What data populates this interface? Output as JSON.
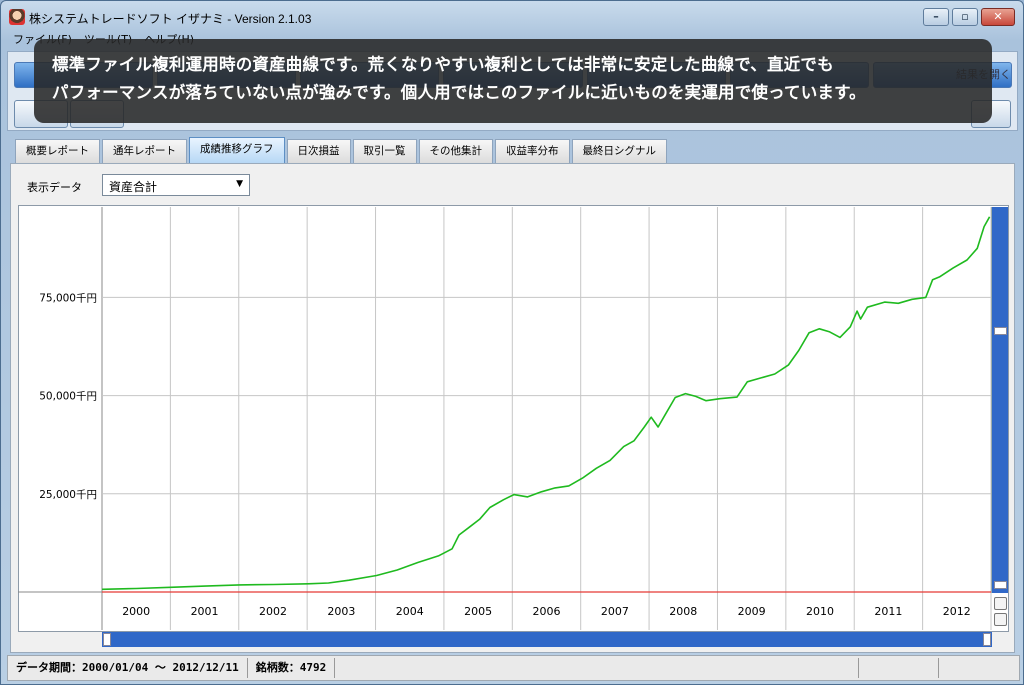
{
  "window": {
    "title": "株システムトレードソフト イザナミ - Version 2.1.03"
  },
  "menu": [
    "ファイル(F)",
    "ツール(T)",
    "ヘルプ(H)"
  ],
  "toolbar": {
    "right_label": "結果を開く"
  },
  "caption": {
    "line1": "標準ファイル複利運用時の資産曲線です。荒くなりやすい複利としては非常に安定した曲線で、直近でも",
    "line2": "パフォーマンスが落ちていない点が強みです。個人用ではこのファイルに近いものを実運用で使っています。"
  },
  "tabs": [
    {
      "label": "概要レポート",
      "active": false
    },
    {
      "label": "通年レポート",
      "active": false
    },
    {
      "label": "成績推移グラフ",
      "active": true
    },
    {
      "label": "日次損益",
      "active": false
    },
    {
      "label": "取引一覧",
      "active": false
    },
    {
      "label": "その他集計",
      "active": false
    },
    {
      "label": "収益率分布",
      "active": false
    },
    {
      "label": "最終日シグナル",
      "active": false
    }
  ],
  "display": {
    "label": "表示データ",
    "selected": "資産合計"
  },
  "status": {
    "period": "データ期間：2000/01/04 〜 2012/12/11",
    "count": "銘柄数：4792"
  },
  "chart_data": {
    "type": "line",
    "x_unit": "year",
    "categories": [
      "2000",
      "2001",
      "2002",
      "2003",
      "2004",
      "2005",
      "2006",
      "2007",
      "2008",
      "2009",
      "2010",
      "2011",
      "2012"
    ],
    "y_tick_labels": [
      "25,000千円",
      "50,000千円",
      "75,000千円"
    ],
    "y_ticks": [
      25000,
      50000,
      75000
    ],
    "ylim": [
      0,
      98000
    ],
    "xlim": [
      2000.0,
      2012.95
    ],
    "grid": true,
    "series": [
      {
        "color": "#1fba1f",
        "points": [
          [
            2000.0,
            700
          ],
          [
            2000.5,
            900
          ],
          [
            2001.0,
            1200
          ],
          [
            2001.5,
            1500
          ],
          [
            2002.0,
            1800
          ],
          [
            2002.5,
            1900
          ],
          [
            2003.0,
            2100
          ],
          [
            2003.3,
            2300
          ],
          [
            2003.6,
            3000
          ],
          [
            2004.0,
            4200
          ],
          [
            2004.3,
            5600
          ],
          [
            2004.6,
            7500
          ],
          [
            2004.9,
            9200
          ],
          [
            2005.1,
            11000
          ],
          [
            2005.2,
            14500
          ],
          [
            2005.35,
            16500
          ],
          [
            2005.5,
            18500
          ],
          [
            2005.65,
            21500
          ],
          [
            2005.85,
            23500
          ],
          [
            2006.0,
            24800
          ],
          [
            2006.2,
            24200
          ],
          [
            2006.4,
            25500
          ],
          [
            2006.6,
            26500
          ],
          [
            2006.8,
            27000
          ],
          [
            2007.0,
            29000
          ],
          [
            2007.2,
            31500
          ],
          [
            2007.4,
            33500
          ],
          [
            2007.6,
            37000
          ],
          [
            2007.75,
            38500
          ],
          [
            2007.9,
            42000
          ],
          [
            2008.0,
            44500
          ],
          [
            2008.1,
            42000
          ],
          [
            2008.2,
            45000
          ],
          [
            2008.35,
            49500
          ],
          [
            2008.5,
            50500
          ],
          [
            2008.65,
            49800
          ],
          [
            2008.8,
            48700
          ],
          [
            2009.0,
            49200
          ],
          [
            2009.25,
            49600
          ],
          [
            2009.4,
            53500
          ],
          [
            2009.6,
            54500
          ],
          [
            2009.8,
            55500
          ],
          [
            2010.0,
            57800
          ],
          [
            2010.15,
            61500
          ],
          [
            2010.3,
            66000
          ],
          [
            2010.45,
            67000
          ],
          [
            2010.6,
            66200
          ],
          [
            2010.75,
            64800
          ],
          [
            2010.9,
            67500
          ],
          [
            2011.0,
            71500
          ],
          [
            2011.05,
            69500
          ],
          [
            2011.15,
            72500
          ],
          [
            2011.4,
            73800
          ],
          [
            2011.6,
            73500
          ],
          [
            2011.8,
            74500
          ],
          [
            2012.0,
            75000
          ],
          [
            2012.1,
            79500
          ],
          [
            2012.2,
            80200
          ],
          [
            2012.4,
            82500
          ],
          [
            2012.6,
            84500
          ],
          [
            2012.75,
            87500
          ],
          [
            2012.85,
            93000
          ],
          [
            2012.93,
            95500
          ]
        ]
      },
      {
        "color": "#e53935",
        "points": [
          [
            2000.0,
            0
          ],
          [
            2012.95,
            0
          ]
        ]
      }
    ]
  }
}
